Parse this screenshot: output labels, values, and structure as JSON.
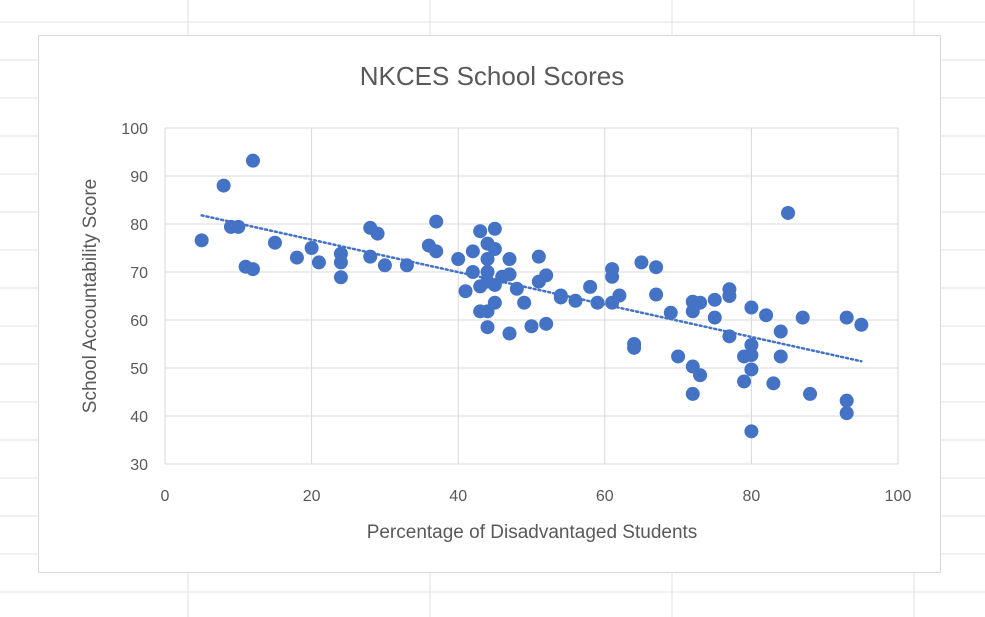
{
  "chart_data": {
    "type": "scatter",
    "title": "NKCES School Scores",
    "xlabel": "Percentage of Disadvantaged Students",
    "ylabel": "School Accountability Score",
    "xlim": [
      0,
      100
    ],
    "ylim": [
      30,
      100
    ],
    "x_ticks": [
      "0",
      "20",
      "40",
      "60",
      "80",
      "100"
    ],
    "y_ticks": [
      "30",
      "40",
      "50",
      "60",
      "70",
      "80",
      "90",
      "100"
    ],
    "grid": true,
    "legend": "none",
    "marker_color": "#4472c4",
    "trendline": {
      "type": "linear",
      "color": "#4472c4",
      "style": "dotted",
      "x": [
        5,
        95
      ],
      "y": [
        81.8,
        51.4
      ]
    },
    "points": [
      [
        5,
        76.6
      ],
      [
        8,
        88.0
      ],
      [
        9,
        79.4
      ],
      [
        10,
        79.4
      ],
      [
        11,
        71.1
      ],
      [
        12,
        70.6
      ],
      [
        12,
        93.2
      ],
      [
        15,
        76.1
      ],
      [
        18,
        73.0
      ],
      [
        20,
        75.0
      ],
      [
        21,
        72.0
      ],
      [
        24,
        72.0
      ],
      [
        24,
        73.8
      ],
      [
        24,
        68.9
      ],
      [
        28,
        79.2
      ],
      [
        28,
        73.2
      ],
      [
        29,
        78.0
      ],
      [
        30,
        71.4
      ],
      [
        33,
        71.4
      ],
      [
        36,
        75.5
      ],
      [
        37,
        74.3
      ],
      [
        37,
        80.5
      ],
      [
        40,
        72.7
      ],
      [
        41,
        66.0
      ],
      [
        42,
        70.0
      ],
      [
        42,
        74.3
      ],
      [
        43,
        78.5
      ],
      [
        43,
        67.0
      ],
      [
        43,
        61.8
      ],
      [
        44,
        58.5
      ],
      [
        44,
        61.8
      ],
      [
        44,
        68.0
      ],
      [
        44,
        70.0
      ],
      [
        44,
        72.7
      ],
      [
        44,
        75.9
      ],
      [
        45,
        63.6
      ],
      [
        45,
        67.3
      ],
      [
        45,
        74.8
      ],
      [
        45,
        79.0
      ],
      [
        46,
        69.0
      ],
      [
        47,
        57.2
      ],
      [
        47,
        69.5
      ],
      [
        47,
        72.7
      ],
      [
        48,
        66.5
      ],
      [
        49,
        63.6
      ],
      [
        50,
        58.7
      ],
      [
        51,
        73.2
      ],
      [
        51,
        68.0
      ],
      [
        52,
        69.3
      ],
      [
        52,
        59.2
      ],
      [
        54,
        64.7
      ],
      [
        54,
        65.1
      ],
      [
        56,
        64.0
      ],
      [
        58,
        66.9
      ],
      [
        59,
        63.6
      ],
      [
        61,
        63.6
      ],
      [
        61,
        69.0
      ],
      [
        61,
        70.6
      ],
      [
        62,
        65.1
      ],
      [
        64,
        55.0
      ],
      [
        64,
        54.2
      ],
      [
        65,
        72.0
      ],
      [
        67,
        71.0
      ],
      [
        67,
        65.3
      ],
      [
        69,
        61.5
      ],
      [
        70,
        52.4
      ],
      [
        72,
        50.3
      ],
      [
        72,
        44.6
      ],
      [
        72,
        61.8
      ],
      [
        72,
        63.8
      ],
      [
        73,
        48.5
      ],
      [
        73,
        63.6
      ],
      [
        75,
        64.2
      ],
      [
        75,
        60.5
      ],
      [
        77,
        66.4
      ],
      [
        77,
        65.0
      ],
      [
        77,
        56.6
      ],
      [
        79,
        47.2
      ],
      [
        79,
        52.4
      ],
      [
        80,
        36.8
      ],
      [
        80,
        49.7
      ],
      [
        80,
        52.7
      ],
      [
        80,
        54.8
      ],
      [
        80,
        62.6
      ],
      [
        82,
        61.0
      ],
      [
        83,
        46.8
      ],
      [
        84,
        57.6
      ],
      [
        84,
        52.4
      ],
      [
        85,
        82.3
      ],
      [
        87,
        60.5
      ],
      [
        88,
        44.6
      ],
      [
        93,
        60.5
      ],
      [
        93,
        43.2
      ],
      [
        93,
        40.6
      ],
      [
        95,
        59.0
      ]
    ]
  }
}
